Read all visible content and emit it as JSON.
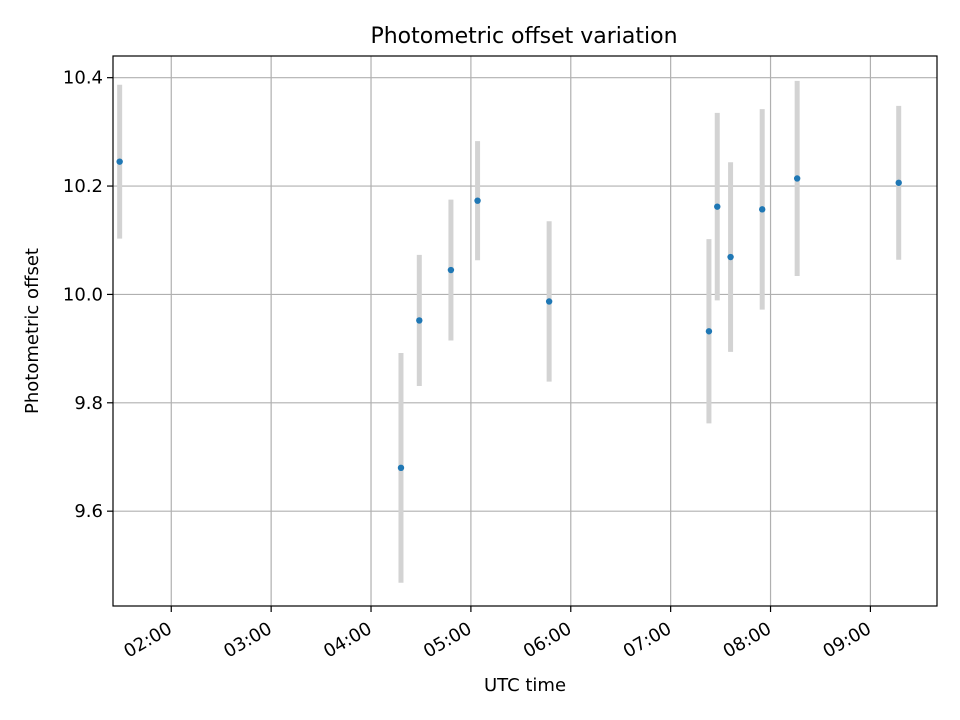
{
  "chart_data": {
    "type": "scatter",
    "title": "Photometric offset variation",
    "xlabel": "UTC time",
    "ylabel": "Photometric offset",
    "xlim": [
      "01:25",
      "09:40"
    ],
    "ylim": [
      9.425,
      10.44
    ],
    "x_ticks": [
      "02:00",
      "03:00",
      "04:00",
      "05:00",
      "06:00",
      "07:00",
      "08:00",
      "09:00"
    ],
    "y_ticks": [
      9.6,
      9.8,
      10.0,
      10.2,
      10.4
    ],
    "y_tick_labels": [
      "9.6",
      "9.8",
      "10.0",
      "10.2",
      "10.4"
    ],
    "grid": true,
    "colors": {
      "points": "#1f77b4",
      "errorbars": "#d3d3d3"
    },
    "series": [
      {
        "x": [
          "01:29",
          "04:18",
          "04:29",
          "04:48",
          "05:04",
          "05:47",
          "07:23",
          "07:28",
          "07:36",
          "07:55",
          "08:16",
          "09:17"
        ],
        "values": [
          10.245,
          9.68,
          9.952,
          10.045,
          10.173,
          9.987,
          9.932,
          10.162,
          10.069,
          10.157,
          10.214,
          10.206
        ],
        "error": [
          0.142,
          0.212,
          0.121,
          0.13,
          0.11,
          0.148,
          0.17,
          0.173,
          0.175,
          0.185,
          0.18,
          0.142
        ]
      }
    ]
  }
}
